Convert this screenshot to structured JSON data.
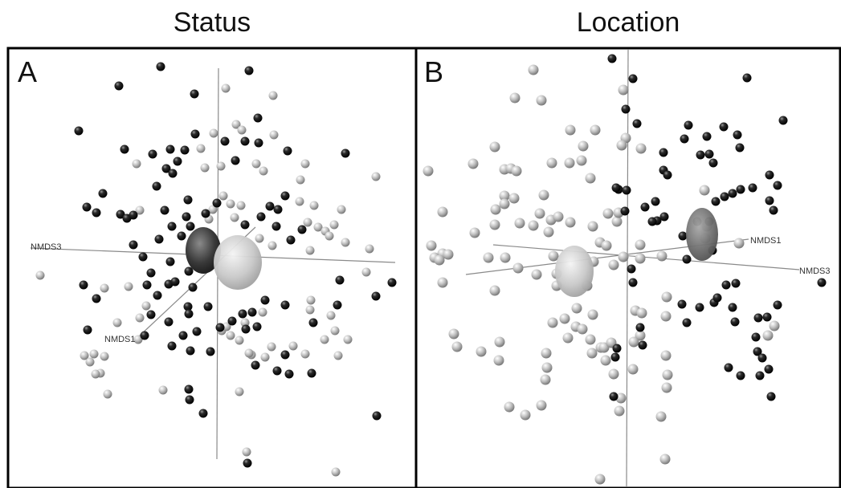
{
  "column_titles": {
    "a": "Status",
    "b": "Location"
  },
  "chart_data": [
    {
      "type": "scatter",
      "title": "Status",
      "panel_label": "A",
      "axis_labels": [
        "NMDS3",
        "NMDS1"
      ],
      "legend": "",
      "ellipses": [
        {
          "group": "black",
          "color": "#2a2a2a"
        },
        {
          "group": "grey",
          "color": "#c8c8c8"
        }
      ]
    },
    {
      "type": "scatter",
      "title": "Location",
      "panel_label": "B",
      "axis_labels": [
        "NMDS1",
        "NMDS3"
      ],
      "legend": "",
      "ellipses": [
        {
          "group": "grey",
          "color": "#cfcfcf"
        },
        {
          "group": "black",
          "color": "#6e6e6e"
        }
      ]
    }
  ]
}
